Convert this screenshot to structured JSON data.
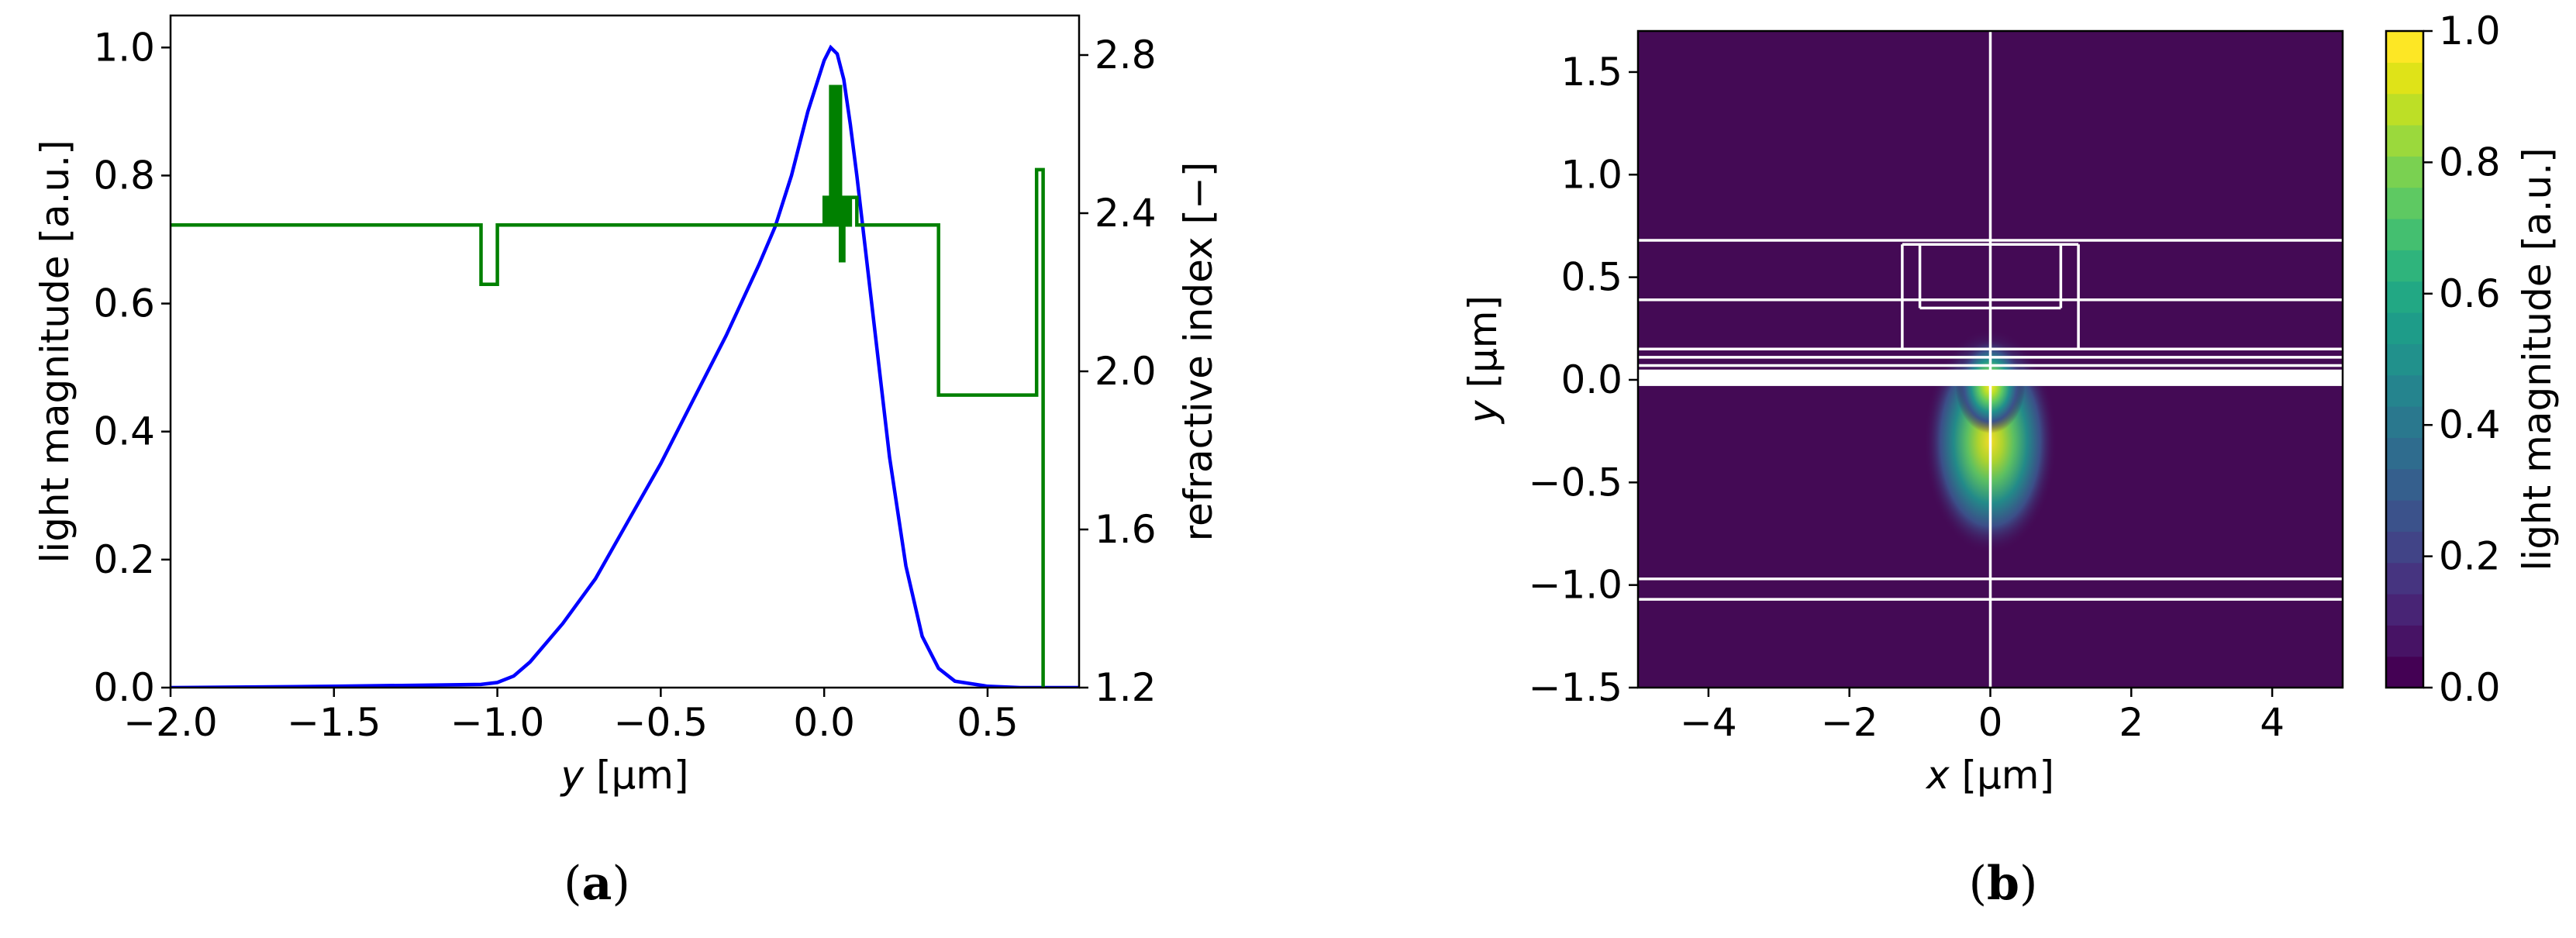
{
  "chart_data": [
    {
      "type": "line",
      "panel": "a",
      "xlabel_italic": "y",
      "xlabel_unit": " [µm]",
      "ylabel": "light magnitude [a.u.]",
      "y2label": "refractive index [−]",
      "xlim": [
        -2.0,
        0.78
      ],
      "ylim": [
        0.0,
        1.05
      ],
      "y2lim": [
        1.2,
        2.9
      ],
      "xticks": [
        "−2.0",
        "−1.5",
        "−1.0",
        "−0.5",
        "0.0",
        "0.5"
      ],
      "xtick_values": [
        -2.0,
        -1.5,
        -1.0,
        -0.5,
        0.0,
        0.5
      ],
      "yticks": [
        "0.0",
        "0.2",
        "0.4",
        "0.6",
        "0.8",
        "1.0"
      ],
      "ytick_values": [
        0.0,
        0.2,
        0.4,
        0.6,
        0.8,
        1.0
      ],
      "y2ticks": [
        "1.2",
        "1.6",
        "2.0",
        "2.4",
        "2.8"
      ],
      "y2tick_values": [
        1.2,
        1.6,
        2.0,
        2.4,
        2.8
      ],
      "series": [
        {
          "axis": "left",
          "color": "#0000ff",
          "x": [
            -2.0,
            -1.5,
            -1.2,
            -1.05,
            -1.0,
            -0.95,
            -0.9,
            -0.8,
            -0.7,
            -0.6,
            -0.5,
            -0.4,
            -0.3,
            -0.2,
            -0.15,
            -0.1,
            -0.05,
            0.0,
            0.02,
            0.04,
            0.06,
            0.08,
            0.1,
            0.15,
            0.2,
            0.25,
            0.3,
            0.35,
            0.4,
            0.5,
            0.6,
            0.7,
            0.78
          ],
          "y": [
            0.0,
            0.002,
            0.004,
            0.005,
            0.008,
            0.018,
            0.04,
            0.1,
            0.17,
            0.26,
            0.35,
            0.45,
            0.55,
            0.66,
            0.72,
            0.8,
            0.9,
            0.98,
            1.0,
            0.99,
            0.95,
            0.88,
            0.8,
            0.58,
            0.36,
            0.19,
            0.08,
            0.03,
            0.01,
            0.002,
            0.0,
            0.0,
            0.0
          ]
        },
        {
          "axis": "right",
          "color": "#008000",
          "x": [
            -2.0,
            -1.05,
            -1.05,
            -1.0,
            -1.0,
            0.0,
            0.0,
            0.01,
            0.01,
            0.02,
            0.02,
            0.03,
            0.03,
            0.04,
            0.04,
            0.05,
            0.05,
            0.06,
            0.06,
            0.07,
            0.07,
            0.08,
            0.08,
            0.1,
            0.1,
            0.35,
            0.35,
            0.65,
            0.65,
            0.67,
            0.67
          ],
          "y": [
            2.37,
            2.37,
            2.22,
            2.22,
            2.37,
            2.37,
            2.44,
            2.44,
            2.37,
            2.37,
            2.72,
            2.72,
            2.37,
            2.37,
            2.72,
            2.72,
            2.28,
            2.28,
            2.44,
            2.44,
            2.37,
            2.37,
            2.44,
            2.44,
            2.37,
            2.37,
            1.94,
            1.94,
            2.51,
            2.51,
            1.2
          ]
        }
      ]
    },
    {
      "type": "heatmap",
      "panel": "b",
      "xlabel_italic": "x",
      "xlabel_unit": " [µm]",
      "ylabel_italic": "y",
      "ylabel_unit": " [µm]",
      "colorbar_label": "light magnitude [a.u.]",
      "colormap": "viridis",
      "background_color": "#440a55",
      "xlim": [
        -5.0,
        5.0
      ],
      "ylim": [
        -1.5,
        1.7
      ],
      "xticks": [
        "−4",
        "−2",
        "0",
        "2",
        "4"
      ],
      "xtick_values": [
        -4,
        -2,
        0,
        2,
        4
      ],
      "yticks": [
        "−1.5",
        "−1.0",
        "−0.5",
        "0.0",
        "0.5",
        "1.0",
        "1.5"
      ],
      "ytick_values": [
        -1.5,
        -1.0,
        -0.5,
        0.0,
        0.5,
        1.0,
        1.5
      ],
      "cticks": [
        "0.0",
        "0.2",
        "0.4",
        "0.6",
        "0.8",
        "1.0"
      ],
      "ctick_values": [
        0.0,
        0.2,
        0.4,
        0.6,
        0.8,
        1.0
      ],
      "clim": [
        0.0,
        1.0
      ],
      "mode_peak": {
        "x": 0.0,
        "y": 0.0,
        "value": 1.0
      },
      "mode_extent": {
        "x_half_width": 0.9,
        "y_min": -0.85,
        "y_max": 0.25
      },
      "boundary_lines": [
        {
          "orientation": "h",
          "value": 0.68,
          "from": -5.0,
          "to": 5.0
        },
        {
          "orientation": "h",
          "value": 0.39,
          "from": -5.0,
          "to": 5.0
        },
        {
          "orientation": "h",
          "value": 0.15,
          "from": -5.0,
          "to": 5.0
        },
        {
          "orientation": "h",
          "value": 0.11,
          "from": -5.0,
          "to": 5.0
        },
        {
          "orientation": "h",
          "value": 0.07,
          "from": -5.0,
          "to": 5.0
        },
        {
          "orientation": "h",
          "value": -0.97,
          "from": -5.0,
          "to": 5.0
        },
        {
          "orientation": "h",
          "value": -1.07,
          "from": -5.0,
          "to": 5.0
        },
        {
          "orientation": "h",
          "value": 0.66,
          "from": -1.25,
          "to": 1.25
        },
        {
          "orientation": "h",
          "value": 0.35,
          "from": -1.0,
          "to": 1.0
        },
        {
          "orientation": "v",
          "value": -1.25,
          "from": 0.15,
          "to": 0.66
        },
        {
          "orientation": "v",
          "value": 1.25,
          "from": 0.15,
          "to": 0.66
        },
        {
          "orientation": "v",
          "value": -1.0,
          "from": 0.35,
          "to": 0.66
        },
        {
          "orientation": "v",
          "value": 1.0,
          "from": 0.35,
          "to": 0.66
        },
        {
          "orientation": "v",
          "value": 0.0,
          "from": -1.5,
          "to": 1.7
        }
      ],
      "white_band": {
        "y_from": -0.03,
        "y_to": 0.05
      }
    }
  ],
  "captions": [
    {
      "label": "a"
    },
    {
      "label": "b"
    }
  ]
}
